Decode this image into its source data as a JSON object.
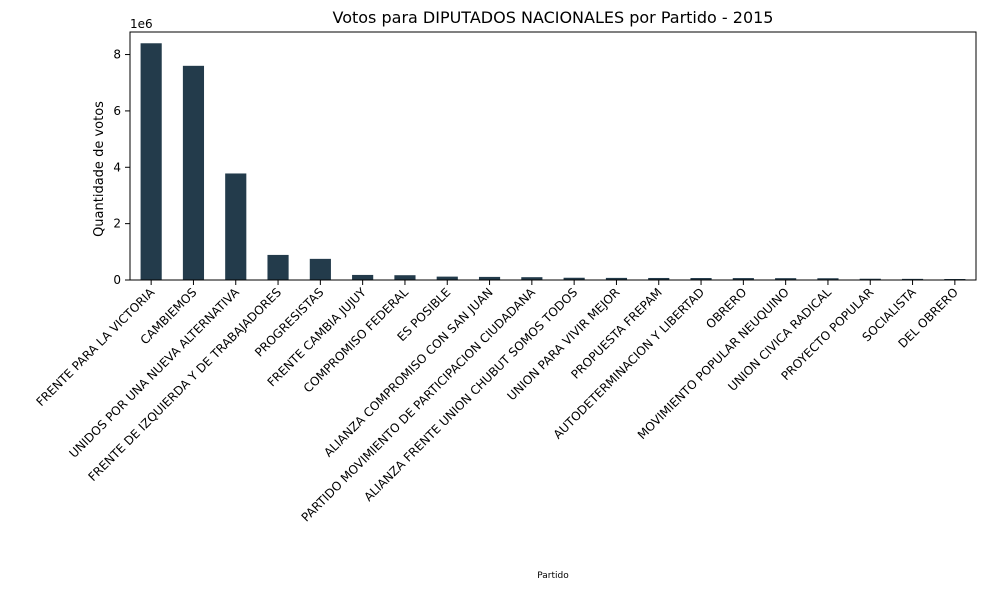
{
  "chart_data": {
    "type": "bar",
    "title": "Votos para DIPUTADOS NACIONALES por Partido - 2015",
    "xlabel": "Partido",
    "ylabel": "Quantidade de votos",
    "y_offset_label": "1e6",
    "y_scale": 1000000,
    "ylim": [
      0,
      8.8
    ],
    "yticks": [
      0,
      2,
      4,
      6,
      8
    ],
    "bar_color": "#233b4b",
    "grid": false,
    "categories": [
      "FRENTE PARA LA VICTORIA",
      "CAMBIEMOS",
      "UNIDOS POR UNA NUEVA ALTERNATIVA",
      "FRENTE DE IZQUIERDA Y DE TRABAJADORES",
      "PROGRESISTAS",
      "FRENTE CAMBIA JUJUY",
      "COMPROMISO FEDERAL",
      "ES POSIBLE",
      "ALIANZA COMPROMISO CON SAN JUAN",
      "PARTIDO MOVIMIENTO DE PARTICIPACION CIUDADANA",
      "ALIANZA FRENTE UNION CHUBUT SOMOS TODOS",
      "UNION PARA VIVIR MEJOR",
      "PROPUESTA FREPAM",
      "AUTODETERMINACION Y LIBERTAD",
      "OBRERO",
      "MOVIMIENTO POPULAR NEUQUINO",
      "UNION CIVICA RADICAL",
      "PROYECTO POPULAR",
      "SOCIALISTA",
      "DEL OBRERO"
    ],
    "values": [
      8400000,
      7600000,
      3780000,
      890000,
      750000,
      180000,
      170000,
      120000,
      110000,
      100000,
      80000,
      75000,
      72000,
      70000,
      68000,
      65000,
      62000,
      45000,
      40000,
      35000
    ]
  }
}
